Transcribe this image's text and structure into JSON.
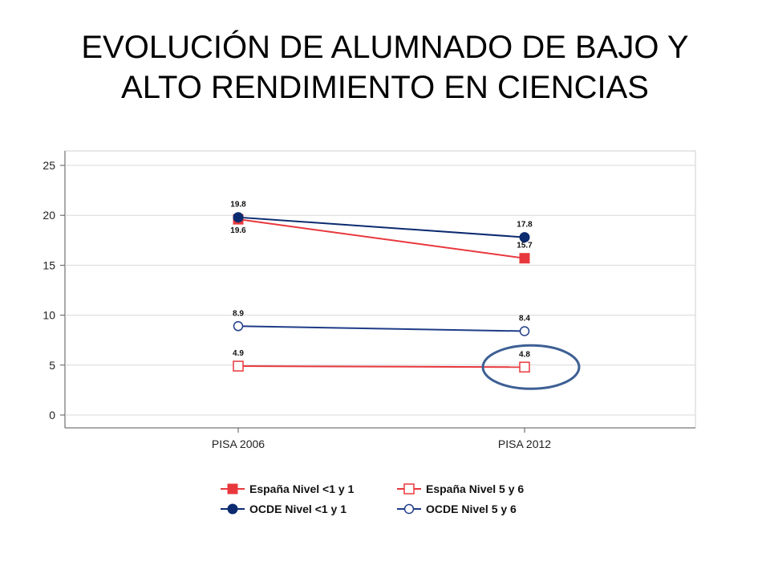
{
  "slide": {
    "title_line1": "EVOLUCIÓN DE ALUMNADO DE BAJO Y",
    "title_line2": "ALTO RENDIMIENTO EN CIENCIAS"
  },
  "chart_data": {
    "type": "line",
    "categories": [
      "PISA 2006",
      "PISA 2012"
    ],
    "ylim": [
      0,
      25
    ],
    "yticks": [
      0,
      5,
      10,
      15,
      20,
      25
    ],
    "grid": true,
    "legend_position": "bottom",
    "series": [
      {
        "name": "España Nivel <1 y 1",
        "values": [
          19.6,
          15.7
        ],
        "labels": [
          "19.6",
          "15.7"
        ],
        "color": "#e8383d",
        "marker": "filled-square"
      },
      {
        "name": "España Nivel 5 y 6",
        "values": [
          4.9,
          4.8
        ],
        "labels": [
          "4.9",
          "4.8"
        ],
        "color": "#e8383d",
        "marker": "hollow-square"
      },
      {
        "name": "OCDE Nivel <1 y 1",
        "values": [
          19.8,
          17.8
        ],
        "labels": [
          "19.8",
          "17.8"
        ],
        "color": "#0b2a6f",
        "marker": "filled-circle"
      },
      {
        "name": "OCDE Nivel 5 y 6",
        "values": [
          8.9,
          8.4
        ],
        "labels": [
          "8.9",
          "8.4"
        ],
        "color": "#1f3c88",
        "marker": "hollow-circle"
      }
    ],
    "highlight": {
      "series_index": 1,
      "category_index": 1,
      "color": "#3d5f94"
    }
  }
}
